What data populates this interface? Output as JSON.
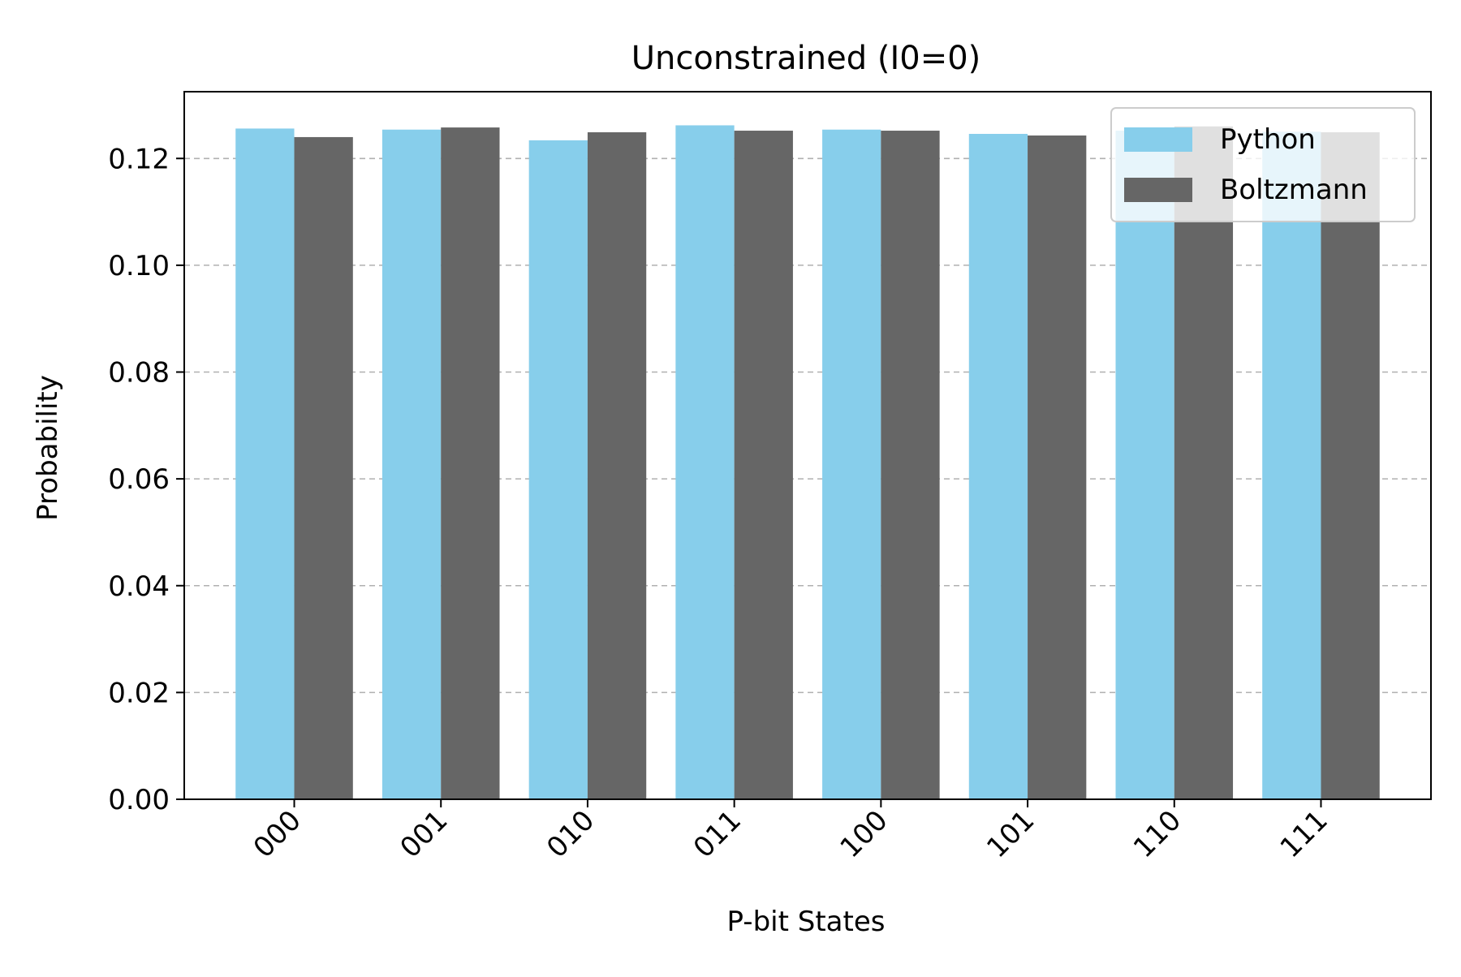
{
  "chart_data": {
    "type": "bar",
    "title": "Unconstrained (I0=0)",
    "xlabel": "P-bit States",
    "ylabel": "Probability",
    "categories": [
      "000",
      "001",
      "010",
      "011",
      "100",
      "101",
      "110",
      "111"
    ],
    "series": [
      {
        "name": "Python",
        "color": "#87CEEB",
        "values": [
          0.1256,
          0.1254,
          0.1234,
          0.1262,
          0.1254,
          0.1246,
          0.1252,
          0.125
        ]
      },
      {
        "name": "Boltzmann",
        "color": "#666666",
        "values": [
          0.124,
          0.1258,
          0.1249,
          0.1252,
          0.1252,
          0.1243,
          0.126,
          0.1249
        ]
      }
    ],
    "ylim": [
      0,
      0.1325
    ],
    "yticks": [
      "0.00",
      "0.02",
      "0.04",
      "0.06",
      "0.08",
      "0.10",
      "0.12"
    ],
    "ytick_values": [
      0,
      0.02,
      0.04,
      0.06,
      0.08,
      0.1,
      0.12
    ],
    "grid": "y-dashed",
    "legend_position": "upper right"
  }
}
